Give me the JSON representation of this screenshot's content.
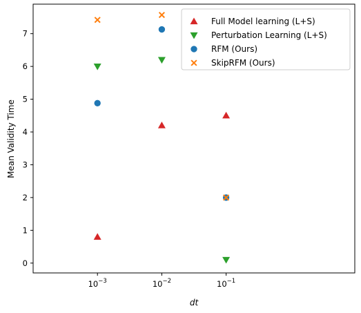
{
  "chart_data": {
    "type": "scatter",
    "title": "",
    "xlabel": "dt",
    "ylabel": "Mean Validity Time",
    "xscale": "log",
    "xlim": [
      0.0001,
      10
    ],
    "ylim": [
      -0.3,
      7.9
    ],
    "grid": false,
    "legend_position": "top-right",
    "x_ticks": [
      {
        "value": 0.001,
        "base": "10",
        "exp": "−3"
      },
      {
        "value": 0.01,
        "base": "10",
        "exp": "−2"
      },
      {
        "value": 0.1,
        "base": "10",
        "exp": "−1"
      }
    ],
    "y_ticks": [
      0,
      1,
      2,
      3,
      4,
      5,
      6,
      7
    ],
    "series": [
      {
        "name": "Full Model learning (L+S)",
        "marker": "triangle-up",
        "color": "#d62728",
        "points": [
          {
            "x": 0.001,
            "y": 0.8
          },
          {
            "x": 0.01,
            "y": 4.2
          },
          {
            "x": 0.1,
            "y": 4.5
          }
        ]
      },
      {
        "name": "Perturbation Learning (L+S)",
        "marker": "triangle-down",
        "color": "#2ca02c",
        "points": [
          {
            "x": 0.001,
            "y": 6.0
          },
          {
            "x": 0.01,
            "y": 6.2
          },
          {
            "x": 0.1,
            "y": 0.1
          }
        ]
      },
      {
        "name": "RFM (Ours)",
        "marker": "circle",
        "color": "#1f77b4",
        "points": [
          {
            "x": 0.001,
            "y": 4.88
          },
          {
            "x": 0.01,
            "y": 7.13
          },
          {
            "x": 0.1,
            "y": 2.0
          }
        ]
      },
      {
        "name": "SkipRFM (Ours)",
        "marker": "x",
        "color": "#ff7f0e",
        "points": [
          {
            "x": 0.001,
            "y": 7.42
          },
          {
            "x": 0.01,
            "y": 7.57
          },
          {
            "x": 0.1,
            "y": 2.0
          }
        ]
      }
    ]
  }
}
